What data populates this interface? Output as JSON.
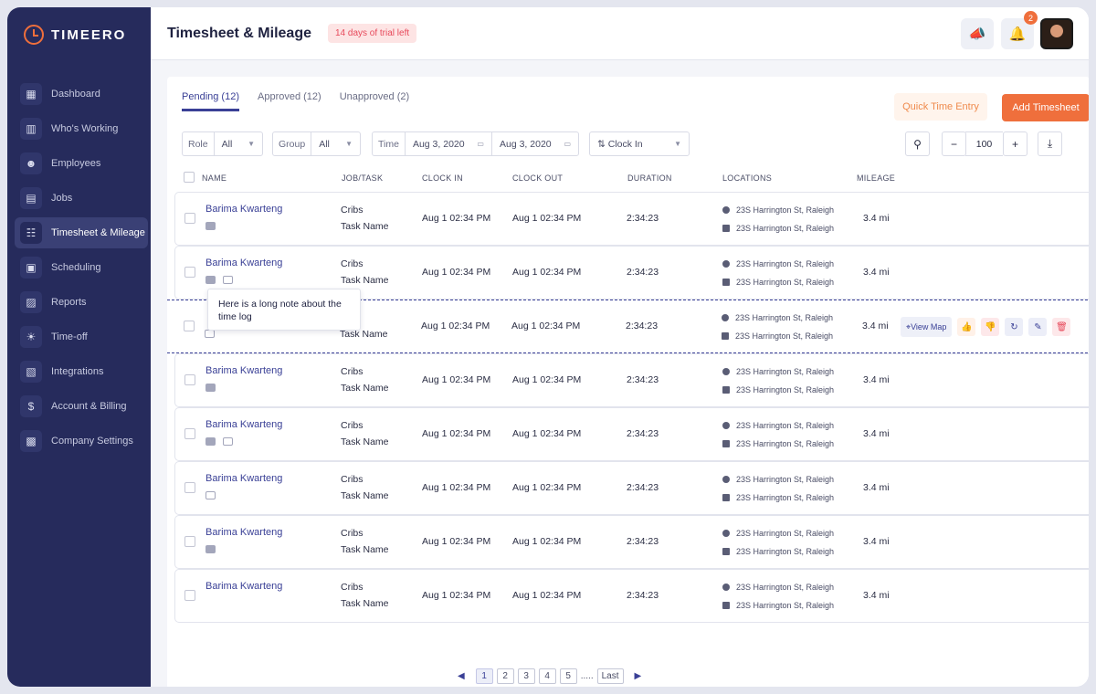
{
  "brand": {
    "name": "TIMEERO",
    "accent": "#ef6f3c"
  },
  "sidebar": {
    "items": [
      {
        "label": "Dashboard",
        "icon": "dashboard-icon",
        "glyph": "▦",
        "active": false
      },
      {
        "label": "Who's Working",
        "icon": "map-icon",
        "glyph": "▥",
        "active": false
      },
      {
        "label": "Employees",
        "icon": "people-icon",
        "glyph": "☻",
        "active": false
      },
      {
        "label": "Jobs",
        "icon": "briefcase-icon",
        "glyph": "▤",
        "active": false
      },
      {
        "label": "Timesheet & Mileage",
        "icon": "timesheet-icon",
        "glyph": "☷",
        "active": true
      },
      {
        "label": "Scheduling",
        "icon": "calendar-icon",
        "glyph": "▣",
        "active": false
      },
      {
        "label": "Reports",
        "icon": "report-icon",
        "glyph": "▨",
        "active": false
      },
      {
        "label": "Time-off",
        "icon": "time-off-icon",
        "glyph": "☀",
        "active": false
      },
      {
        "label": "Integrations",
        "icon": "integrations-icon",
        "glyph": "▧",
        "active": false
      },
      {
        "label": "Account & Billing",
        "icon": "billing-icon",
        "glyph": "$",
        "active": false
      },
      {
        "label": "Company Settings",
        "icon": "building-icon",
        "glyph": "▩",
        "active": false
      }
    ]
  },
  "header": {
    "title": "Timesheet & Mileage",
    "trial": "14 days of trial left",
    "notification_count": "2"
  },
  "tabs": [
    {
      "label": "Pending (12)",
      "active": true
    },
    {
      "label": "Approved (12)",
      "active": false
    },
    {
      "label": "Unapproved (2)",
      "active": false
    }
  ],
  "actions": {
    "quick_entry": "Quick Time Entry",
    "add_timesheet": "Add Timesheet"
  },
  "filters": {
    "role": {
      "label": "Role",
      "value": "All"
    },
    "group": {
      "label": "Group",
      "value": "All"
    },
    "time": {
      "label": "Time",
      "from": "Aug 3, 2020",
      "to": "Aug 3, 2020"
    },
    "sort": {
      "value": "Clock In"
    },
    "zoom": "100"
  },
  "columns": [
    "NAME",
    "JOB/TASK",
    "CLOCK IN",
    "CLOCK OUT",
    "DURATION",
    "LOCATIONS",
    "MILEAGE"
  ],
  "rows": [
    {
      "name": "Barima Kwarteng",
      "job": "Cribs",
      "task": "Task Name",
      "clock_in": "Aug 1 02:34 PM",
      "clock_out": "Aug 1 02:34 PM",
      "duration": "2:34:23",
      "loc_in": "23S Harrington St, Raleigh",
      "loc_out": "23S Harrington St, Raleigh",
      "mileage": "3.4 mi",
      "note": true,
      "image": false
    },
    {
      "name": "Barima Kwarteng",
      "job": "Cribs",
      "task": "Task Name",
      "clock_in": "Aug 1 02:34 PM",
      "clock_out": "Aug 1 02:34 PM",
      "duration": "2:34:23",
      "loc_in": "23S Harrington St, Raleigh",
      "loc_out": "23S Harrington St, Raleigh",
      "mileage": "3.4 mi",
      "note": true,
      "image": true
    },
    {
      "name": "",
      "job": "",
      "task": "Task Name",
      "clock_in": "Aug 1 02:34 PM",
      "clock_out": "Aug 1 02:34 PM",
      "duration": "2:34:23",
      "loc_in": "23S Harrington St, Raleigh",
      "loc_out": "23S Harrington St, Raleigh",
      "mileage": "3.4 mi",
      "note": false,
      "image": true,
      "highlighted": true
    },
    {
      "name": "Barima Kwarteng",
      "job": "Cribs",
      "task": "Task Name",
      "clock_in": "Aug 1 02:34 PM",
      "clock_out": "Aug 1 02:34 PM",
      "duration": "2:34:23",
      "loc_in": "23S Harrington St, Raleigh",
      "loc_out": "23S Harrington St, Raleigh",
      "mileage": "3.4 mi",
      "note": true,
      "image": false
    },
    {
      "name": "Barima Kwarteng",
      "job": "Cribs",
      "task": "Task Name",
      "clock_in": "Aug 1 02:34 PM",
      "clock_out": "Aug 1 02:34 PM",
      "duration": "2:34:23",
      "loc_in": "23S Harrington St, Raleigh",
      "loc_out": "23S Harrington St, Raleigh",
      "mileage": "3.4 mi",
      "note": true,
      "image": true
    },
    {
      "name": "Barima Kwarteng",
      "job": "Cribs",
      "task": "Task Name",
      "clock_in": "Aug 1 02:34 PM",
      "clock_out": "Aug 1 02:34 PM",
      "duration": "2:34:23",
      "loc_in": "23S Harrington St, Raleigh",
      "loc_out": "23S Harrington St, Raleigh",
      "mileage": "3.4 mi",
      "note": false,
      "image": true
    },
    {
      "name": "Barima Kwarteng",
      "job": "Cribs",
      "task": "Task Name",
      "clock_in": "Aug 1 02:34 PM",
      "clock_out": "Aug 1 02:34 PM",
      "duration": "2:34:23",
      "loc_in": "23S Harrington St, Raleigh",
      "loc_out": "23S Harrington St, Raleigh",
      "mileage": "3.4 mi",
      "note": true,
      "image": false
    },
    {
      "name": "Barima Kwarteng",
      "job": "Cribs",
      "task": "Task Name",
      "clock_in": "Aug 1 02:34 PM",
      "clock_out": "Aug 1 02:34 PM",
      "duration": "2:34:23",
      "loc_in": "23S Harrington St, Raleigh",
      "loc_out": "23S Harrington St, Raleigh",
      "mileage": "3.4 mi",
      "note": false,
      "image": false
    }
  ],
  "row_actions": {
    "view_map": "View Map"
  },
  "tooltip": "Here is a long note about the time log",
  "pagination": {
    "pages": [
      "1",
      "2",
      "3",
      "4",
      "5"
    ],
    "ellipsis": ".....",
    "last": "Last"
  }
}
